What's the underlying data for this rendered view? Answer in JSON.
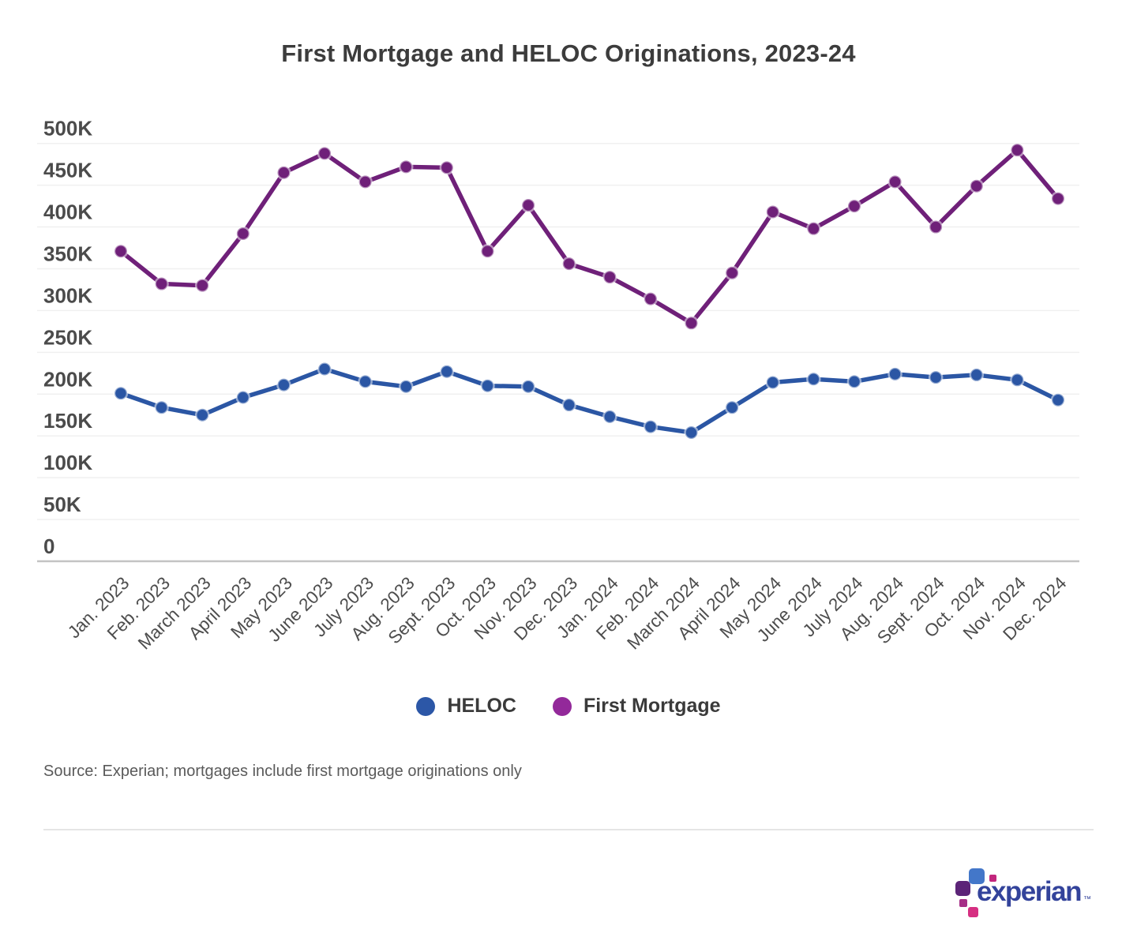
{
  "title": "First Mortgage and HELOC Originations, 2023-24",
  "chart_data": {
    "type": "line",
    "categories": [
      "Jan. 2023",
      "Feb. 2023",
      "March 2023",
      "April 2023",
      "May 2023",
      "June 2023",
      "July 2023",
      "Aug. 2023",
      "Sept. 2023",
      "Oct. 2023",
      "Nov. 2023",
      "Dec. 2023",
      "Jan. 2024",
      "Feb. 2024",
      "March 2024",
      "April 2024",
      "May 2024",
      "June 2024",
      "July 2024",
      "Aug. 2024",
      "Sept. 2024",
      "Oct. 2024",
      "Nov. 2024",
      "Dec. 2024"
    ],
    "value_unit": "K",
    "series": [
      {
        "name": "HELOC",
        "color": "#2b56a4",
        "values": [
          201,
          184,
          175,
          196,
          211,
          230,
          215,
          209,
          227,
          210,
          209,
          187,
          173,
          161,
          154,
          184,
          214,
          218,
          215,
          224,
          220,
          223,
          217,
          193
        ]
      },
      {
        "name": "First Mortgage",
        "color": "#6f2079",
        "values": [
          371,
          332,
          330,
          392,
          465,
          488,
          454,
          472,
          471,
          371,
          426,
          356,
          340,
          314,
          285,
          345,
          418,
          398,
          425,
          454,
          400,
          449,
          492,
          434
        ]
      }
    ],
    "y_ticks": [
      {
        "value": 500,
        "label": "500K"
      },
      {
        "value": 450,
        "label": "450K"
      },
      {
        "value": 400,
        "label": "400K"
      },
      {
        "value": 350,
        "label": "350K"
      },
      {
        "value": 300,
        "label": "300K"
      },
      {
        "value": 250,
        "label": "250K"
      },
      {
        "value": 200,
        "label": "200K"
      },
      {
        "value": 150,
        "label": "150K"
      },
      {
        "value": 100,
        "label": "100K"
      },
      {
        "value": 50,
        "label": "50K"
      },
      {
        "value": 0,
        "label": "0"
      }
    ],
    "ylim": [
      0,
      500
    ],
    "grid": true,
    "legend_position": "bottom"
  },
  "legend": {
    "items": [
      {
        "label": "HELOC",
        "color": "#2c57a7"
      },
      {
        "label": "First Mortgage",
        "color": "#93299a"
      }
    ]
  },
  "source_note": "Source: Experian; mortgages include first mortgage originations only",
  "logo": {
    "wordmark": "experian",
    "trademark": "™",
    "wordmark_color": "#33439b",
    "square_colors": [
      "#4377c9",
      "#c2267d",
      "#5c2478",
      "#a62e87",
      "#d62f82"
    ]
  }
}
